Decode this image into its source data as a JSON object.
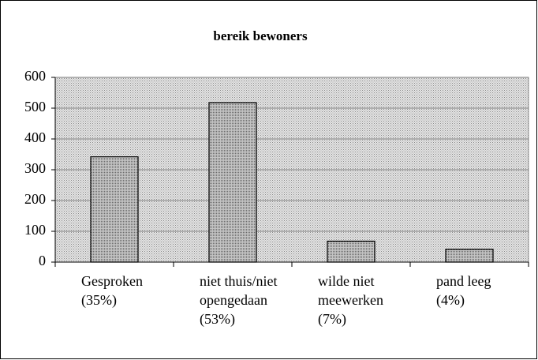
{
  "chart_data": {
    "type": "bar",
    "title": "bereik bewoners",
    "categories": [
      [
        "Gesproken",
        "(35%)"
      ],
      [
        "niet thuis/niet",
        "opengedaan",
        "(53%)"
      ],
      [
        "wilde niet",
        "meewerken",
        "(7%)"
      ],
      [
        "pand leeg",
        "(4%)"
      ]
    ],
    "values": [
      342,
      518,
      68,
      42
    ],
    "color": "#a8a8a8",
    "ylim": [
      0,
      600
    ],
    "yticks": [
      0,
      100,
      200,
      300,
      400,
      500,
      600
    ],
    "grid": true
  }
}
